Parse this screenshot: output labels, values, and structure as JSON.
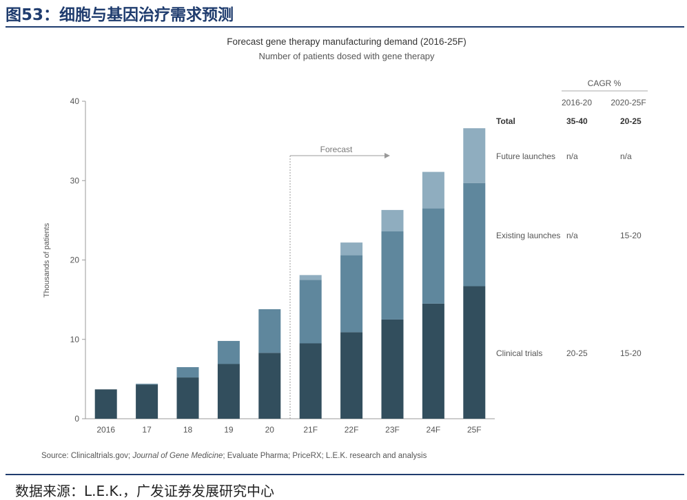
{
  "figure_title": "图53：细胞与基因治疗需求预测",
  "bottom_source": "数据来源：L.E.K.，广发证券发展研究中心",
  "chart_data": {
    "type": "bar",
    "stacked": true,
    "title": "Forecast gene therapy manufacturing demand (2016-25F)",
    "subtitle": "Number of patients dosed with gene therapy",
    "ylabel": "Thousands of patients",
    "xlabel": "",
    "ylim": [
      0,
      40
    ],
    "yticks": [
      0,
      10,
      20,
      30,
      40
    ],
    "categories": [
      "2016",
      "17",
      "18",
      "19",
      "20",
      "21F",
      "22F",
      "23F",
      "24F",
      "25F"
    ],
    "series": [
      {
        "name": "Clinical trials",
        "color": "#324e5d",
        "values": [
          3.7,
          4.3,
          5.2,
          6.9,
          8.3,
          9.5,
          10.9,
          12.5,
          14.5,
          16.7
        ]
      },
      {
        "name": "Existing launches",
        "color": "#5f879d",
        "values": [
          0.0,
          0.1,
          1.3,
          2.9,
          5.5,
          8.0,
          9.7,
          11.1,
          12.0,
          13.0
        ]
      },
      {
        "name": "Future launches",
        "color": "#8fadbf",
        "values": [
          0.0,
          0.0,
          0.0,
          0.0,
          0.0,
          0.6,
          1.6,
          2.7,
          4.6,
          6.9
        ]
      }
    ],
    "forecast_label": "Forecast",
    "forecast_start": "21F",
    "cagr": {
      "header": "CAGR %",
      "periods": [
        "2016-20",
        "2020-25F"
      ],
      "rows": [
        {
          "label": "Total",
          "values": [
            "35-40",
            "20-25"
          ],
          "bold": true
        },
        {
          "label": "Future launches",
          "values": [
            "n/a",
            "n/a"
          ]
        },
        {
          "label": "Existing launches",
          "values": [
            "n/a",
            "15-20"
          ]
        },
        {
          "label": "Clinical trials",
          "values": [
            "20-25",
            "15-20"
          ]
        }
      ]
    },
    "source_note": {
      "prefix": "Source: Clinicaltrials.gov; ",
      "italic": "Journal of Gene Medicine",
      "suffix": "; Evaluate Pharma; PriceRX; L.E.K. research and analysis"
    },
    "grid": false,
    "legend": "right (row labels)"
  }
}
